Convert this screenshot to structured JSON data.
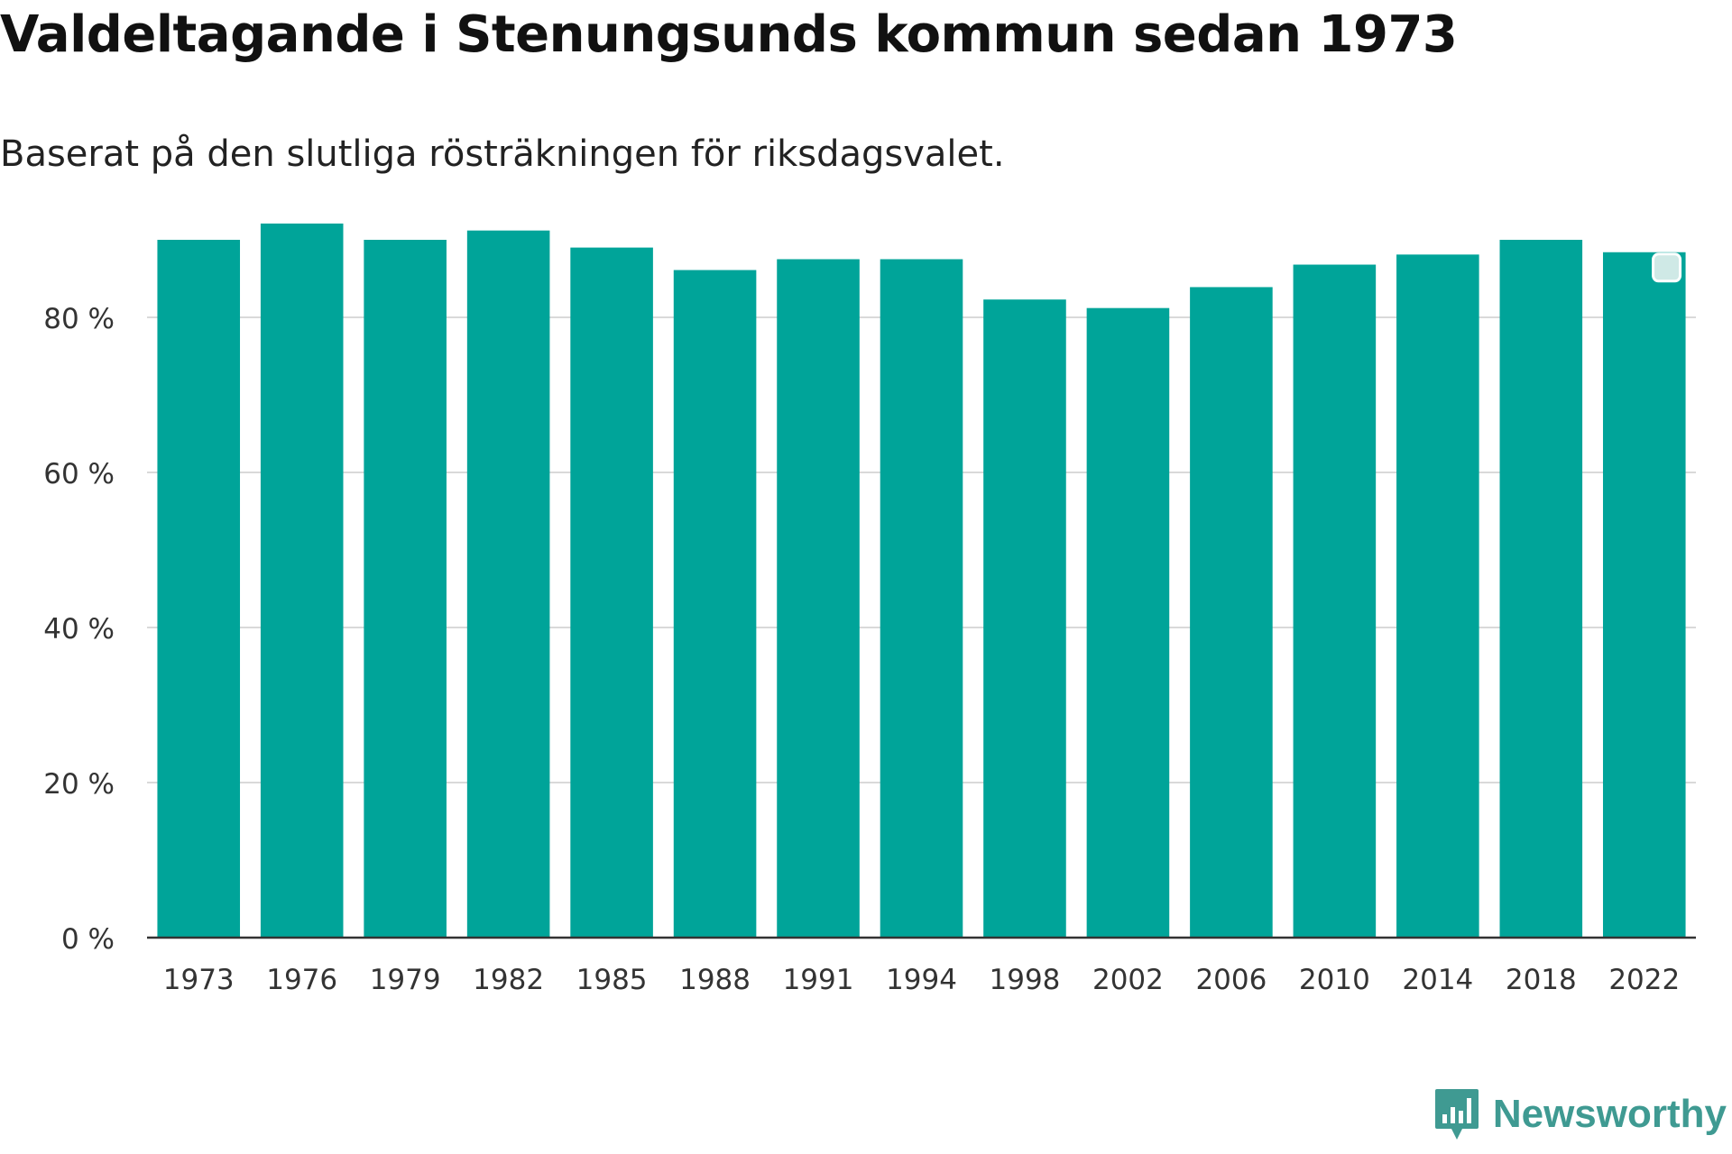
{
  "title": "Valdeltagande i Stenungsunds kommun sedan 1973",
  "subtitle": "Baserat på den slutliga rösträkningen för riksdagsvalet.",
  "brand": {
    "name": "Newsworthy",
    "icon": "newsworthy-logo-icon",
    "color": "#3f9a92"
  },
  "chart_data": {
    "type": "bar",
    "categories": [
      "1973",
      "1976",
      "1979",
      "1982",
      "1985",
      "1988",
      "1991",
      "1994",
      "1998",
      "2002",
      "2006",
      "2010",
      "2014",
      "2018",
      "2022"
    ],
    "values": [
      90.0,
      92.1,
      90.0,
      91.2,
      89.0,
      86.1,
      87.5,
      87.5,
      82.3,
      81.2,
      83.9,
      86.8,
      88.1,
      90.0,
      88.4
    ],
    "ylim": [
      0,
      100
    ],
    "yticks": [
      0,
      20,
      40,
      60,
      80
    ],
    "ytick_labels": [
      "0 %",
      "20 %",
      "40 %",
      "60 %",
      "80 %"
    ],
    "bar_color": "#00a499",
    "grid": true,
    "highlighted_category": "2022",
    "xlabel": "",
    "ylabel": ""
  }
}
